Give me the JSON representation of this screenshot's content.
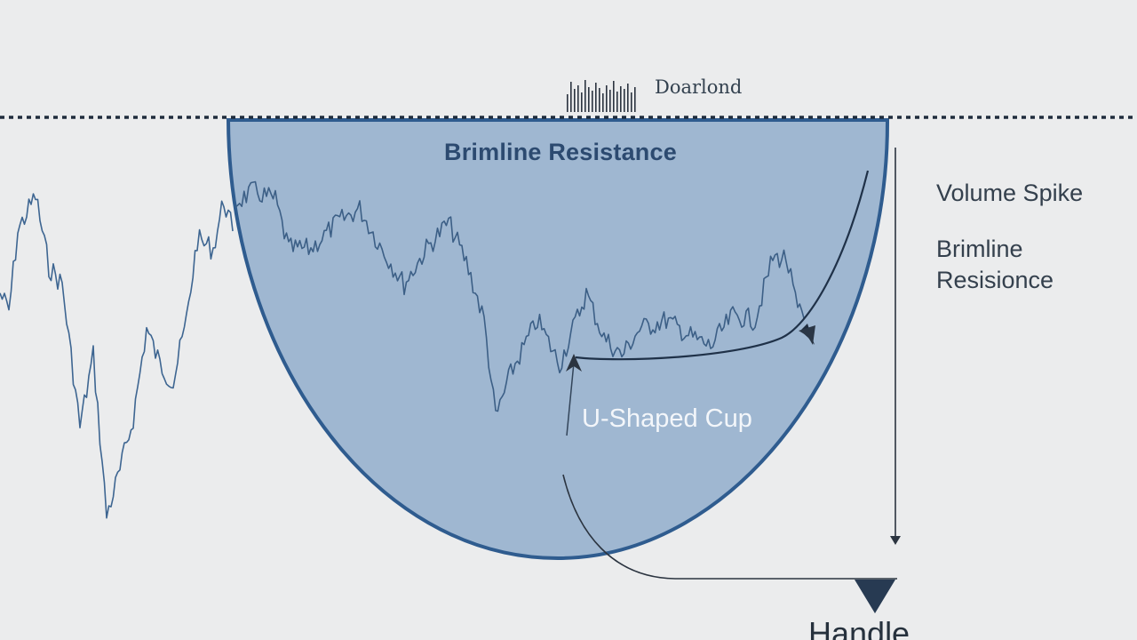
{
  "labels": {
    "top_badge": "Doarlond",
    "cup_title": "Brimline Resistance",
    "cup_label": "U-Shaped Cup",
    "side_label_1": "Volume Spike",
    "side_label_2_line1": "Brimline",
    "side_label_2_line2": "Resisionce",
    "handle_label": "Handle"
  },
  "colors": {
    "background": "#ebeced",
    "cup_fill": "#9fb7d1",
    "cup_stroke": "#2f5c8f",
    "price_line": "#3d6591",
    "dotted_line": "#1f2c3d",
    "arrow": "#2b3440",
    "handle_triangle": "#273a52"
  },
  "icons": {
    "volume_bars": "volume-bars-icon",
    "handle_marker": "triangle-down-icon"
  }
}
